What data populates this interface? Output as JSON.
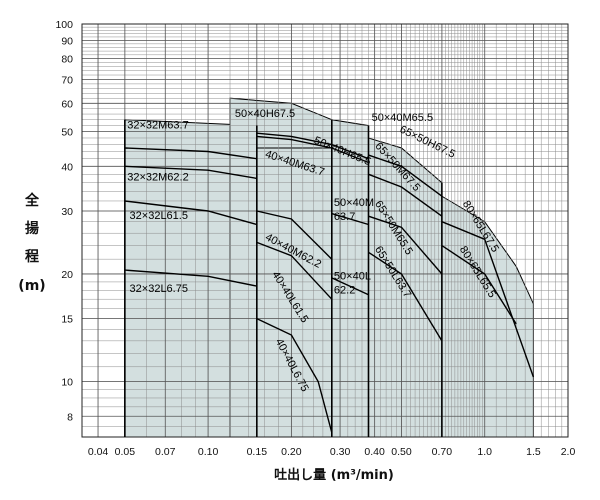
{
  "chart_data": {
    "type": "area",
    "xlabel": {
      "main": "吐出し量",
      "unit": "(m³/min)"
    },
    "ylabel": {
      "chars": [
        "全",
        "揚",
        "程"
      ],
      "unit": "(m)"
    },
    "x_scale": "log",
    "y_scale": "log",
    "xlim": [
      0.035,
      2.0
    ],
    "ylim": [
      7,
      100
    ],
    "grid": true,
    "x_ticks": [
      {
        "v": 0.04,
        "label": "0.04"
      },
      {
        "v": 0.05,
        "label": "0.05"
      },
      {
        "v": 0.07,
        "label": "0.07"
      },
      {
        "v": 0.1,
        "label": "0.10"
      },
      {
        "v": 0.15,
        "label": "0.15"
      },
      {
        "v": 0.2,
        "label": "0.20"
      },
      {
        "v": 0.3,
        "label": "0.30"
      },
      {
        "v": 0.4,
        "label": "0.40"
      },
      {
        "v": 0.5,
        "label": "0.50"
      },
      {
        "v": 0.7,
        "label": "0.70"
      },
      {
        "v": 1.0,
        "label": "1.0"
      },
      {
        "v": 1.5,
        "label": "1.5"
      },
      {
        "v": 2.0,
        "label": "2.0"
      }
    ],
    "y_ticks": [
      {
        "v": 8,
        "label": "8"
      },
      {
        "v": 10,
        "label": "10"
      },
      {
        "v": 15,
        "label": "15"
      },
      {
        "v": 20,
        "label": "20"
      },
      {
        "v": 30,
        "label": "30"
      },
      {
        "v": 40,
        "label": "40"
      },
      {
        "v": 50,
        "label": "50"
      },
      {
        "v": 60,
        "label": "60"
      },
      {
        "v": 70,
        "label": "70"
      },
      {
        "v": 80,
        "label": "80"
      },
      {
        "v": 90,
        "label": "90"
      },
      {
        "v": 100,
        "label": "100"
      }
    ],
    "colors": {
      "fill": "#d3dfdf",
      "grid": "#8c8c8c",
      "curve": "#000000"
    },
    "regions": [
      {
        "x": [
          0.05,
          0.15
        ],
        "top": [
          [
            0.05,
            54
          ],
          [
            0.15,
            52
          ]
        ]
      },
      {
        "x": [
          0.12,
          0.28
        ],
        "top": [
          [
            0.12,
            62
          ],
          [
            0.2,
            60
          ],
          [
            0.28,
            54
          ]
        ]
      },
      {
        "x": [
          0.15,
          0.28
        ],
        "top": [
          [
            0.15,
            45
          ],
          [
            0.28,
            45
          ]
        ]
      },
      {
        "x": [
          0.28,
          0.38
        ],
        "top": [
          [
            0.28,
            54
          ],
          [
            0.38,
            52
          ]
        ]
      },
      {
        "x": [
          0.38,
          0.7
        ],
        "top": [
          [
            0.38,
            48
          ],
          [
            0.5,
            45
          ],
          [
            0.7,
            36
          ]
        ]
      },
      {
        "x": [
          0.7,
          1.5
        ],
        "top": [
          [
            0.7,
            33
          ],
          [
            1.0,
            28
          ],
          [
            1.3,
            21
          ],
          [
            1.5,
            16.5
          ]
        ]
      }
    ],
    "vlines": [
      {
        "x": 0.05,
        "y": [
          7,
          54
        ]
      },
      {
        "x": 0.15,
        "y": [
          7,
          52
        ]
      },
      {
        "x": 0.28,
        "y": [
          7,
          54
        ]
      },
      {
        "x": 0.38,
        "y": [
          7,
          52
        ]
      },
      {
        "x": 0.7,
        "y": [
          7,
          36
        ]
      }
    ],
    "series": [
      {
        "name": "32×32M63.7",
        "points": [
          [
            0.05,
            45
          ],
          [
            0.1,
            44
          ],
          [
            0.15,
            42
          ]
        ],
        "label": {
          "at": [
            0.051,
            51
          ],
          "angle": 0
        }
      },
      {
        "name": "32×32M62.2",
        "points": [
          [
            0.05,
            40
          ],
          [
            0.1,
            39
          ],
          [
            0.15,
            37
          ]
        ],
        "label": {
          "at": [
            0.051,
            36.5
          ],
          "angle": 0
        }
      },
      {
        "name": "32×32L61.5",
        "points": [
          [
            0.05,
            32
          ],
          [
            0.1,
            30
          ],
          [
            0.15,
            27.5
          ]
        ],
        "label": {
          "at": [
            0.052,
            28.5
          ],
          "angle": 0
        }
      },
      {
        "name": "32×32L6.75",
        "points": [
          [
            0.05,
            20.5
          ],
          [
            0.1,
            19.7
          ],
          [
            0.15,
            18.5
          ]
        ],
        "label": {
          "at": [
            0.052,
            17.8
          ],
          "angle": 0
        }
      },
      {
        "name": "50×40H67.5",
        "points": [],
        "label": {
          "at": [
            0.125,
            55
          ],
          "angle": 0
        }
      },
      {
        "name": "50×40M65.5",
        "points": [
          [
            0.15,
            49.5
          ],
          [
            0.2,
            48.5
          ],
          [
            0.28,
            46
          ],
          [
            0.38,
            42
          ]
        ],
        "label": {
          "at": [
            0.39,
            53.5
          ],
          "angle": 0
        }
      },
      {
        "name": "50×40H65.5",
        "points": [
          [
            0.15,
            48.5
          ],
          [
            0.2,
            47.5
          ],
          [
            0.28,
            45
          ],
          [
            0.38,
            41
          ]
        ],
        "label": {
          "at": [
            0.24,
            46.5
          ],
          "angle": 22
        }
      },
      {
        "name": "40×40M63.7",
        "points": [],
        "label": {
          "at": [
            0.16,
            42.5
          ],
          "angle": 18
        }
      },
      {
        "name": "40×40M62.2",
        "points": [
          [
            0.15,
            30
          ],
          [
            0.2,
            28.5
          ],
          [
            0.28,
            22
          ]
        ],
        "label": {
          "at": [
            0.16,
            25
          ],
          "angle": 28
        }
      },
      {
        "name": "40×40L61.5",
        "points": [
          [
            0.15,
            24.5
          ],
          [
            0.2,
            22.5
          ],
          [
            0.28,
            17
          ]
        ],
        "label": {
          "at": [
            0.17,
            20
          ],
          "angle": 58
        }
      },
      {
        "name": "40×40L6.75",
        "points": [
          [
            0.15,
            15
          ],
          [
            0.2,
            13.5
          ],
          [
            0.25,
            10
          ],
          [
            0.28,
            7.2
          ]
        ],
        "label": {
          "at": [
            0.175,
            13
          ],
          "angle": 62
        }
      },
      {
        "name": "50×40M",
        "name2": "63.7",
        "points": [
          [
            0.28,
            29.5
          ],
          [
            0.38,
            27.5
          ]
        ],
        "label": {
          "at": [
            0.285,
            31
          ],
          "angle": 0
        }
      },
      {
        "name": "50×40L",
        "name2": "62.2",
        "points": [
          [
            0.28,
            19.5
          ],
          [
            0.38,
            17.5
          ]
        ],
        "label": {
          "at": [
            0.285,
            19.3
          ],
          "angle": 0
        }
      },
      {
        "name": "65×50H67.5",
        "points": [
          [
            0.38,
            43
          ],
          [
            0.5,
            40
          ],
          [
            0.7,
            33
          ]
        ],
        "label": {
          "at": [
            0.49,
            50
          ],
          "angle": 26
        }
      },
      {
        "name": "65×50M67.5",
        "points": [
          [
            0.38,
            38
          ],
          [
            0.5,
            35
          ],
          [
            0.7,
            29
          ]
        ],
        "label": {
          "at": [
            0.4,
            45.5
          ],
          "angle": 48
        }
      },
      {
        "name": "65×50M65.5",
        "points": [
          [
            0.38,
            29
          ],
          [
            0.5,
            27
          ],
          [
            0.7,
            20
          ]
        ],
        "label": {
          "at": [
            0.4,
            31.5
          ],
          "angle": 58
        }
      },
      {
        "name": "65×50L63.7",
        "points": [
          [
            0.38,
            23
          ],
          [
            0.5,
            20
          ],
          [
            0.7,
            13
          ]
        ],
        "label": {
          "at": [
            0.4,
            23.5
          ],
          "angle": 58
        }
      },
      {
        "name": "80×65L67.5",
        "points": [
          [
            0.7,
            28
          ],
          [
            1.0,
            25
          ],
          [
            1.5,
            10.3
          ]
        ],
        "label": {
          "at": [
            0.83,
            31.5
          ],
          "angle": 58
        }
      },
      {
        "name": "80×65L65.5",
        "points": [
          [
            0.7,
            24
          ],
          [
            1.0,
            20
          ],
          [
            1.3,
            14.5
          ]
        ],
        "label": {
          "at": [
            0.81,
            23.5
          ],
          "angle": 58
        }
      }
    ]
  }
}
